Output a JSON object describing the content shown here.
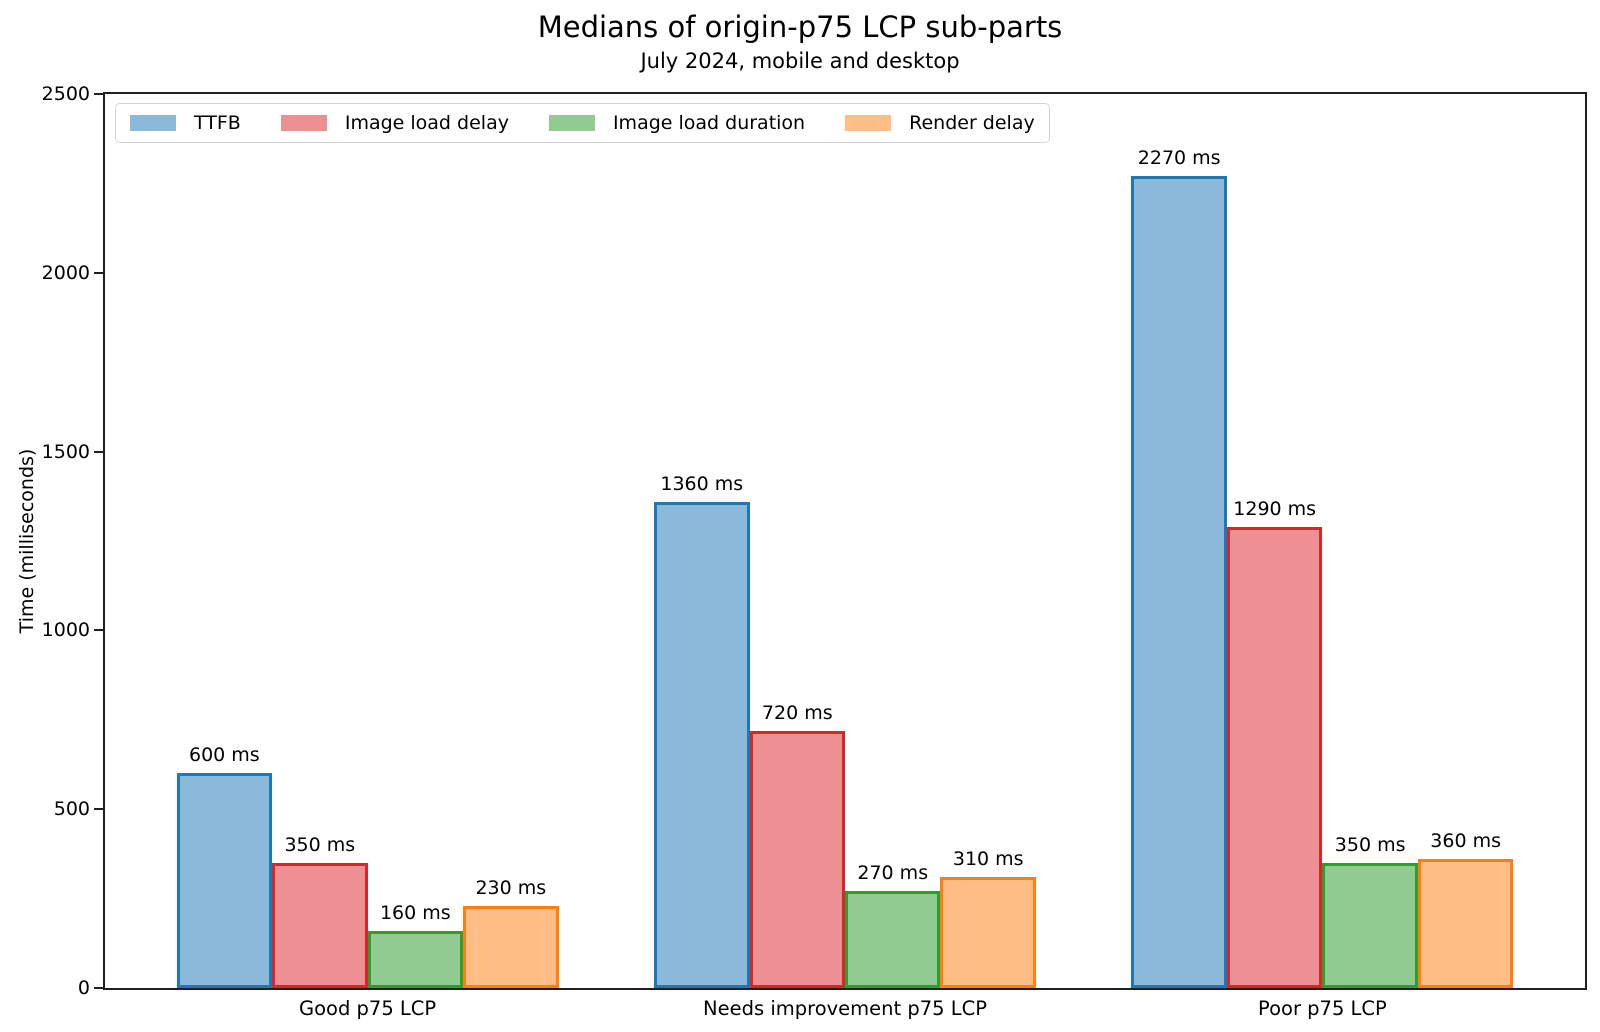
{
  "chart_data": {
    "type": "bar",
    "title": "Medians of origin-p75 LCP sub-parts",
    "subtitle": "July 2024, mobile and desktop",
    "ylabel": "Time (milliseconds)",
    "xlabel": "",
    "ylim": [
      0,
      2500
    ],
    "yticks": [
      0,
      500,
      1000,
      1500,
      2000,
      2500
    ],
    "grid": false,
    "legend_position": "upper left",
    "value_label_suffix": " ms",
    "categories": [
      "Good p75 LCP",
      "Needs improvement p75 LCP",
      "Poor p75 LCP"
    ],
    "series": [
      {
        "name": "TTFB",
        "values": [
          600,
          1360,
          2270
        ],
        "fill_color": "#8CB8DA",
        "edge_color": "#1f77b4"
      },
      {
        "name": "Image load delay",
        "values": [
          350,
          720,
          1290
        ],
        "fill_color": "#EC9094",
        "edge_color": "#d62728"
      },
      {
        "name": "Image load duration",
        "values": [
          160,
          270,
          350
        ],
        "fill_color": "#92CB92",
        "edge_color": "#2ca02c"
      },
      {
        "name": "Render delay",
        "values": [
          230,
          310,
          360
        ],
        "fill_color": "#FFBE85",
        "edge_color": "#ff7f0e"
      }
    ],
    "bar_value_labels": [
      [
        "600 ms",
        "1360 ms",
        "2270 ms"
      ],
      [
        "350 ms",
        "720 ms",
        "1290 ms"
      ],
      [
        "160 ms",
        "270 ms",
        "350 ms"
      ],
      [
        "230 ms",
        "310 ms",
        "360 ms"
      ]
    ]
  }
}
